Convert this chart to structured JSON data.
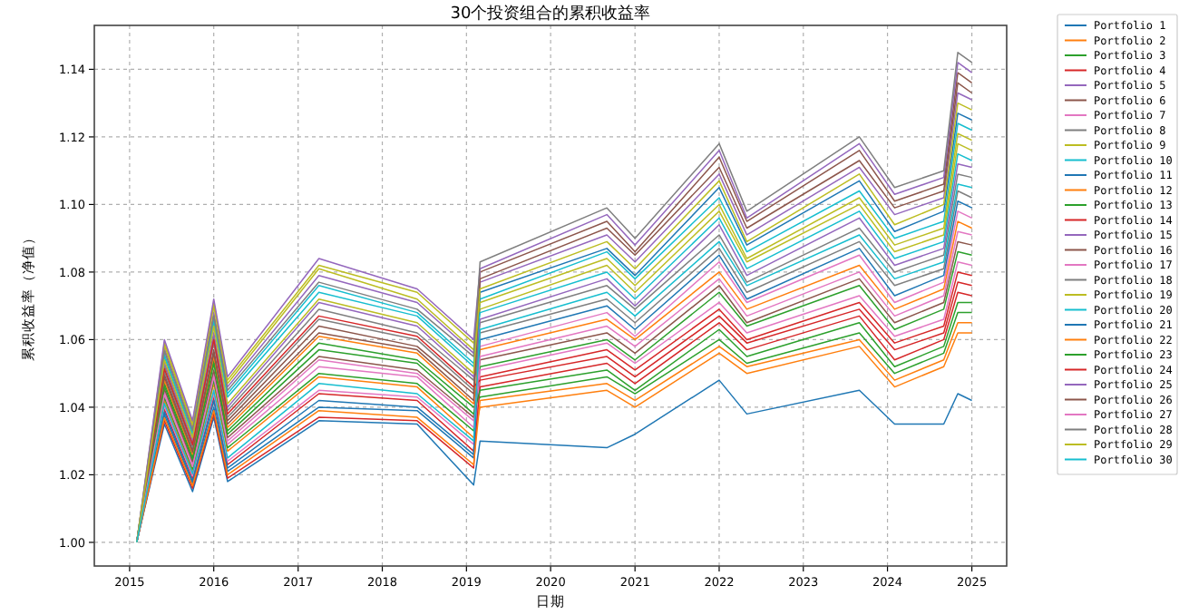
{
  "chart_data": {
    "type": "line",
    "title": "30个投资组合的累积收益率",
    "xlabel": "日期",
    "ylabel": "累积收益率（净值）",
    "x": [
      "2015-02",
      "2015-06",
      "2015-10",
      "2016-01",
      "2016-03",
      "2017-04",
      "2018-06",
      "2019-02",
      "2019-03",
      "2020-09",
      "2021-01",
      "2022-01",
      "2022-05",
      "2023-09",
      "2024-02",
      "2024-09",
      "2024-11",
      "2025-01"
    ],
    "xlim": [
      "2014-08",
      "2025-06"
    ],
    "xticks": [
      {
        "value": "2015",
        "label": "2015"
      },
      {
        "value": "2016",
        "label": "2016"
      },
      {
        "value": "2017",
        "label": "2017"
      },
      {
        "value": "2018",
        "label": "2018"
      },
      {
        "value": "2019",
        "label": "2019"
      },
      {
        "value": "2020",
        "label": "2020"
      },
      {
        "value": "2021",
        "label": "2021"
      },
      {
        "value": "2022",
        "label": "2022"
      },
      {
        "value": "2023",
        "label": "2023"
      },
      {
        "value": "2024",
        "label": "2024"
      },
      {
        "value": "2025",
        "label": "2025"
      }
    ],
    "ylim": [
      0.993,
      1.153
    ],
    "yticks": [
      {
        "value": 1.0,
        "label": "1.00"
      },
      {
        "value": 1.02,
        "label": "1.02"
      },
      {
        "value": 1.04,
        "label": "1.04"
      },
      {
        "value": 1.06,
        "label": "1.06"
      },
      {
        "value": 1.08,
        "label": "1.08"
      },
      {
        "value": 1.1,
        "label": "1.10"
      },
      {
        "value": 1.12,
        "label": "1.12"
      },
      {
        "value": 1.14,
        "label": "1.14"
      }
    ],
    "grid": true,
    "legend": "right",
    "series": [
      {
        "name": "Portfolio 1",
        "color": "#1f77b4",
        "values": [
          1.0,
          1.035,
          1.015,
          1.037,
          1.018,
          1.036,
          1.035,
          1.017,
          1.03,
          1.028,
          1.032,
          1.048,
          1.038,
          1.045,
          1.035,
          1.035,
          1.044,
          1.042
        ]
      },
      {
        "name": "Portfolio 2",
        "color": "#ff7f0e",
        "values": [
          1.0,
          1.042,
          1.021,
          1.047,
          1.027,
          1.049,
          1.046,
          1.031,
          1.04,
          1.045,
          1.04,
          1.056,
          1.05,
          1.058,
          1.046,
          1.052,
          1.062,
          1.062
        ]
      },
      {
        "name": "Portfolio 3",
        "color": "#2ca02c",
        "values": [
          1.0,
          1.0471,
          1.0253,
          1.054,
          1.033,
          1.059,
          1.054,
          1.04,
          1.043,
          1.049,
          1.044,
          1.06,
          1.053,
          1.062,
          1.05,
          1.056,
          1.068,
          1.068
        ]
      },
      {
        "name": "Portfolio 4",
        "color": "#d62728",
        "values": [
          1.0,
          1.0394,
          1.0189,
          1.043,
          1.023,
          1.044,
          1.042,
          1.027,
          1.046,
          1.053,
          1.047,
          1.065,
          1.057,
          1.067,
          1.054,
          1.06,
          1.074,
          1.073
        ]
      },
      {
        "name": "Portfolio 5",
        "color": "#9467bd",
        "values": [
          1.0,
          1.0574,
          1.0339,
          1.068,
          1.046,
          1.079,
          1.071,
          1.056,
          1.077,
          1.091,
          1.083,
          1.109,
          1.091,
          1.111,
          1.097,
          1.102,
          1.133,
          1.131
        ]
      },
      {
        "name": "Portfolio 6",
        "color": "#8c564b",
        "values": [
          1.0,
          1.0497,
          1.0274,
          1.057,
          1.036,
          1.064,
          1.058,
          1.044,
          1.08,
          1.095,
          1.086,
          1.114,
          1.095,
          1.116,
          1.101,
          1.106,
          1.139,
          1.136
        ]
      },
      {
        "name": "Portfolio 7",
        "color": "#e377c2",
        "values": [
          1.0,
          1.0446,
          1.0231,
          1.05,
          1.03,
          1.054,
          1.05,
          1.036,
          1.058,
          1.068,
          1.061,
          1.083,
          1.071,
          1.085,
          1.071,
          1.077,
          1.098,
          1.096
        ]
      },
      {
        "name": "Portfolio 8",
        "color": "#7f7f7f",
        "values": [
          1.0,
          1.0523,
          1.0296,
          1.061,
          1.039,
          1.069,
          1.062,
          1.048,
          1.065,
          1.076,
          1.069,
          1.091,
          1.077,
          1.093,
          1.08,
          1.085,
          1.109,
          1.108
        ]
      },
      {
        "name": "Portfolio 9",
        "color": "#bcbd22",
        "values": [
          1.0,
          1.0591,
          1.0353,
          1.071,
          1.048,
          1.082,
          1.074,
          1.059,
          1.069,
          1.082,
          1.074,
          1.098,
          1.083,
          1.1,
          1.086,
          1.091,
          1.118,
          1.116
        ]
      },
      {
        "name": "Portfolio 10",
        "color": "#17becf",
        "values": [
          1.0,
          1.0549,
          1.0317,
          1.065,
          1.043,
          1.074,
          1.067,
          1.052,
          1.072,
          1.086,
          1.078,
          1.102,
          1.086,
          1.104,
          1.09,
          1.095,
          1.124,
          1.122
        ]
      },
      {
        "name": "Portfolio 11",
        "color": "#1f77b4",
        "values": [
          1.0,
          1.0377,
          1.0174,
          1.04,
          1.021,
          1.04,
          1.039,
          1.025,
          1.074,
          1.087,
          1.079,
          1.105,
          1.088,
          1.107,
          1.092,
          1.098,
          1.127,
          1.125
        ]
      },
      {
        "name": "Portfolio 12",
        "color": "#ff7f0e",
        "values": [
          1.0,
          1.048,
          1.026,
          1.055,
          1.034,
          1.061,
          1.056,
          1.041,
          1.057,
          1.066,
          1.06,
          1.08,
          1.069,
          1.082,
          1.069,
          1.075,
          1.095,
          1.093
        ]
      },
      {
        "name": "Portfolio 13",
        "color": "#2ca02c",
        "values": [
          1.0,
          1.0429,
          1.0217,
          1.048,
          1.028,
          1.05,
          1.047,
          1.033,
          1.052,
          1.06,
          1.054,
          1.074,
          1.064,
          1.076,
          1.063,
          1.069,
          1.086,
          1.085
        ]
      },
      {
        "name": "Portfolio 14",
        "color": "#d62728",
        "values": [
          1.0,
          1.036,
          1.016,
          1.038,
          1.019,
          1.037,
          1.036,
          1.022,
          1.049,
          1.057,
          1.051,
          1.069,
          1.06,
          1.071,
          1.059,
          1.064,
          1.08,
          1.079
        ]
      },
      {
        "name": "Portfolio 15",
        "color": "#9467bd",
        "values": [
          1.0,
          1.0531,
          1.0303,
          1.062,
          1.04,
          1.071,
          1.064,
          1.049,
          1.066,
          1.078,
          1.07,
          1.094,
          1.079,
          1.096,
          1.082,
          1.087,
          1.112,
          1.111
        ]
      },
      {
        "name": "Portfolio 16",
        "color": "#8c564b",
        "values": [
          1.0,
          1.0454,
          1.0239,
          1.051,
          1.031,
          1.055,
          1.051,
          1.037,
          1.054,
          1.062,
          1.056,
          1.076,
          1.065,
          1.078,
          1.065,
          1.071,
          1.089,
          1.088
        ]
      },
      {
        "name": "Portfolio 17",
        "color": "#e377c2",
        "values": [
          1.0,
          1.0403,
          1.0196,
          1.044,
          1.024,
          1.045,
          1.043,
          1.029,
          1.051,
          1.059,
          1.053,
          1.071,
          1.062,
          1.073,
          1.061,
          1.066,
          1.083,
          1.082
        ]
      },
      {
        "name": "Portfolio 18",
        "color": "#7f7f7f",
        "values": [
          1.0,
          1.0506,
          1.0281,
          1.059,
          1.037,
          1.066,
          1.06,
          1.045,
          1.062,
          1.072,
          1.065,
          1.087,
          1.074,
          1.089,
          1.076,
          1.081,
          1.104,
          1.102
        ]
      },
      {
        "name": "Portfolio 19",
        "color": "#bcbd22",
        "values": [
          1.0,
          1.0583,
          1.0346,
          1.07,
          1.047,
          1.081,
          1.072,
          1.057,
          1.071,
          1.084,
          1.076,
          1.1,
          1.084,
          1.102,
          1.088,
          1.093,
          1.121,
          1.119
        ]
      },
      {
        "name": "Portfolio 20",
        "color": "#17becf",
        "values": [
          1.0,
          1.0557,
          1.0324,
          1.066,
          1.044,
          1.076,
          1.068,
          1.053,
          1.068,
          1.08,
          1.072,
          1.096,
          1.081,
          1.098,
          1.084,
          1.089,
          1.115,
          1.113
        ]
      },
      {
        "name": "Portfolio 21",
        "color": "#1f77b4",
        "values": [
          1.0,
          1.0386,
          1.0181,
          1.042,
          1.022,
          1.042,
          1.04,
          1.026,
          1.06,
          1.07,
          1.063,
          1.085,
          1.072,
          1.087,
          1.073,
          1.079,
          1.101,
          1.099
        ]
      },
      {
        "name": "Portfolio 22",
        "color": "#ff7f0e",
        "values": [
          1.0,
          1.0369,
          1.0167,
          1.039,
          1.02,
          1.039,
          1.037,
          1.023,
          1.042,
          1.047,
          1.042,
          1.058,
          1.052,
          1.06,
          1.048,
          1.054,
          1.065,
          1.065
        ]
      },
      {
        "name": "Portfolio 23",
        "color": "#2ca02c",
        "values": [
          1.0,
          1.0463,
          1.0246,
          1.053,
          1.032,
          1.057,
          1.053,
          1.038,
          1.045,
          1.051,
          1.045,
          1.063,
          1.055,
          1.065,
          1.052,
          1.058,
          1.071,
          1.071
        ]
      },
      {
        "name": "Portfolio 24",
        "color": "#d62728",
        "values": [
          1.0,
          1.0514,
          1.0289,
          1.06,
          1.038,
          1.067,
          1.061,
          1.046,
          1.048,
          1.055,
          1.049,
          1.067,
          1.059,
          1.069,
          1.057,
          1.062,
          1.077,
          1.076
        ]
      },
      {
        "name": "Portfolio 25",
        "color": "#9467bd",
        "values": [
          1.0,
          1.06,
          1.036,
          1.072,
          1.049,
          1.084,
          1.075,
          1.06,
          1.081,
          1.097,
          1.088,
          1.116,
          1.096,
          1.118,
          1.103,
          1.108,
          1.142,
          1.139
        ]
      },
      {
        "name": "Portfolio 26",
        "color": "#8c564b",
        "values": [
          1.0,
          1.0489,
          1.0267,
          1.056,
          1.035,
          1.062,
          1.057,
          1.042,
          1.078,
          1.093,
          1.085,
          1.111,
          1.093,
          1.113,
          1.099,
          1.104,
          1.136,
          1.133
        ]
      },
      {
        "name": "Portfolio 27",
        "color": "#e377c2",
        "values": [
          1.0,
          1.0437,
          1.0224,
          1.049,
          1.029,
          1.052,
          1.049,
          1.034,
          1.055,
          1.064,
          1.058,
          1.078,
          1.067,
          1.08,
          1.067,
          1.073,
          1.092,
          1.091
        ]
      },
      {
        "name": "Portfolio 28",
        "color": "#7f7f7f",
        "values": [
          1.0,
          1.0566,
          1.0331,
          1.067,
          1.045,
          1.077,
          1.069,
          1.055,
          1.083,
          1.099,
          1.09,
          1.118,
          1.098,
          1.12,
          1.105,
          1.11,
          1.145,
          1.142
        ]
      },
      {
        "name": "Portfolio 29",
        "color": "#bcbd22",
        "values": [
          1.0,
          1.054,
          1.031,
          1.064,
          1.041,
          1.072,
          1.065,
          1.05,
          1.075,
          1.089,
          1.081,
          1.107,
          1.089,
          1.109,
          1.094,
          1.1,
          1.13,
          1.128
        ]
      },
      {
        "name": "Portfolio 30",
        "color": "#17becf",
        "values": [
          1.0,
          1.0411,
          1.0203,
          1.045,
          1.025,
          1.047,
          1.044,
          1.03,
          1.063,
          1.074,
          1.067,
          1.089,
          1.076,
          1.091,
          1.078,
          1.083,
          1.106,
          1.105
        ]
      }
    ]
  }
}
